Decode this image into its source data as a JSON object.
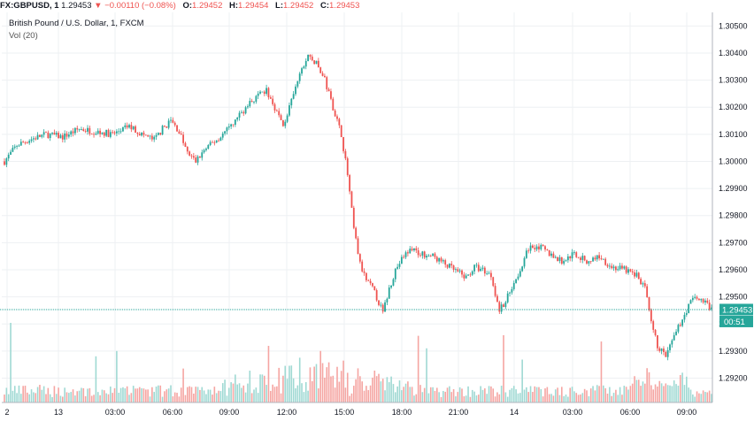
{
  "header": {
    "symbol": "FX:GBPUSD, 1",
    "last": "1.29453",
    "change": "−0.00110 (−0.08%)",
    "o_label": "O:",
    "o_value": "1.29452",
    "h_label": "H:",
    "h_value": "1.29454",
    "l_label": "L:",
    "l_value": "1.29452",
    "c_label": "C:",
    "c_value": "1.29453"
  },
  "legend": {
    "title": "British Pound / U.S. Dollar, 1, FXCM",
    "volume": "Vol (20)"
  },
  "price_tag": {
    "value": "1.29453",
    "countdown": "00:51"
  },
  "colors": {
    "up": "#26a69a",
    "down": "#ef5350",
    "up_vol": "#9fd9d3",
    "down_vol": "#f5a5a2",
    "grid": "#eef0f3",
    "price_line": "#26a69a"
  },
  "chart_data": {
    "type": "candlestick",
    "title": "British Pound / U.S. Dollar, 1, FXCM",
    "ylim": [
      1.2911,
      1.3055
    ],
    "y_ticks": [
      "1.30500",
      "1.30400",
      "1.30300",
      "1.30200",
      "1.30100",
      "1.30000",
      "1.29900",
      "1.29800",
      "1.29700",
      "1.29600",
      "1.29500",
      "1.29400",
      "1.29300",
      "1.29200"
    ],
    "x_ticks": [
      "2",
      "13",
      "03:00",
      "06:00",
      "09:00",
      "12:00",
      "15:00",
      "18:00",
      "21:00",
      "14",
      "03:00",
      "06:00",
      "09:00"
    ],
    "grid": true,
    "current_price": 1.29453,
    "price_path": [
      [
        0,
        1.3
      ],
      [
        6,
        1.3006
      ],
      [
        12,
        1.3008
      ],
      [
        20,
        1.301
      ],
      [
        28,
        1.3009
      ],
      [
        36,
        1.3012
      ],
      [
        44,
        1.3011
      ],
      [
        52,
        1.301
      ],
      [
        60,
        1.3013
      ],
      [
        66,
        1.301
      ],
      [
        72,
        1.3008
      ],
      [
        76,
        1.3012
      ],
      [
        80,
        1.3015
      ],
      [
        84,
        1.3011
      ],
      [
        88,
        1.3003
      ],
      [
        92,
        1.3
      ],
      [
        96,
        1.3004
      ],
      [
        102,
        1.3008
      ],
      [
        108,
        1.3012
      ],
      [
        114,
        1.3018
      ],
      [
        120,
        1.3023
      ],
      [
        126,
        1.3026
      ],
      [
        130,
        1.302
      ],
      [
        134,
        1.3013
      ],
      [
        138,
        1.3022
      ],
      [
        142,
        1.3032
      ],
      [
        146,
        1.3039
      ],
      [
        150,
        1.3036
      ],
      [
        154,
        1.303
      ],
      [
        158,
        1.302
      ],
      [
        162,
        1.301
      ],
      [
        165,
        1.2995
      ],
      [
        168,
        1.2975
      ],
      [
        171,
        1.2962
      ],
      [
        174,
        1.2956
      ],
      [
        177,
        1.2953
      ],
      [
        180,
        1.2948
      ],
      [
        182,
        1.2944
      ],
      [
        185,
        1.2953
      ],
      [
        188,
        1.296
      ],
      [
        192,
        1.2965
      ],
      [
        196,
        1.2968
      ],
      [
        200,
        1.2966
      ],
      [
        206,
        1.2965
      ],
      [
        212,
        1.2962
      ],
      [
        218,
        1.2959
      ],
      [
        222,
        1.2957
      ],
      [
        226,
        1.2961
      ],
      [
        230,
        1.296
      ],
      [
        234,
        1.2958
      ],
      [
        238,
        1.2945
      ],
      [
        240,
        1.2947
      ],
      [
        244,
        1.2954
      ],
      [
        248,
        1.296
      ],
      [
        252,
        1.2968
      ],
      [
        256,
        1.2969
      ],
      [
        262,
        1.2966
      ],
      [
        268,
        1.2963
      ],
      [
        274,
        1.2966
      ],
      [
        280,
        1.2963
      ],
      [
        286,
        1.2965
      ],
      [
        292,
        1.2961
      ],
      [
        298,
        1.296
      ],
      [
        304,
        1.2958
      ],
      [
        308,
        1.2953
      ],
      [
        311,
        1.294
      ],
      [
        314,
        1.2932
      ],
      [
        318,
        1.2928
      ],
      [
        322,
        1.2935
      ],
      [
        326,
        1.2942
      ],
      [
        330,
        1.2948
      ],
      [
        334,
        1.295
      ],
      [
        338,
        1.2947
      ],
      [
        340,
        1.29453
      ]
    ]
  }
}
